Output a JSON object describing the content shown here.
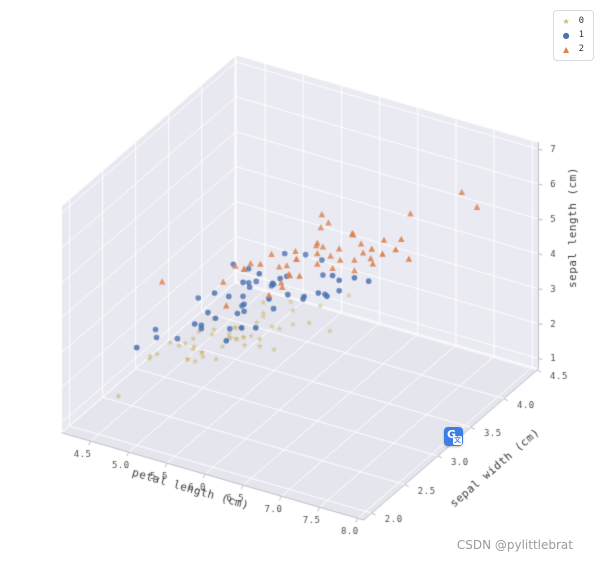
{
  "page": {
    "background": "#ffffff"
  },
  "watermark": {
    "text": "CSDN @pylittlebrat"
  },
  "overlay_icon": {
    "g": "G",
    "zh": "文"
  },
  "legend": {
    "items": [
      {
        "label": "0",
        "marker": "star",
        "color": "#ccb974"
      },
      {
        "label": "1",
        "marker": "circle",
        "color": "#4c72b0"
      },
      {
        "label": "2",
        "marker": "triangle",
        "color": "#dd8452"
      }
    ]
  },
  "chart_data": {
    "type": "scatter",
    "projection": "3d",
    "title": "",
    "view": {
      "azim": -60,
      "elev": 30,
      "box_aspect": [
        4,
        4,
        3
      ]
    },
    "axes": {
      "x": {
        "label": "petal length (cm)",
        "lim": [
          4.12,
          8.08
        ],
        "ticks": [
          4.5,
          5.0,
          5.5,
          6.0,
          6.5,
          7.0,
          7.5,
          8.0
        ],
        "tick_labels": [
          "4.5",
          "5.0",
          "5.5",
          "6.0",
          "6.5",
          "7.0",
          "7.5",
          "8.0"
        ]
      },
      "y": {
        "label": "sepal width (cm)",
        "lim": [
          1.88,
          4.52
        ],
        "ticks": [
          2.0,
          2.5,
          3.0,
          3.5,
          4.0,
          4.5
        ],
        "tick_labels": [
          "2.0",
          "2.5",
          "3.0",
          "3.5",
          "4.0",
          "4.5"
        ]
      },
      "z": {
        "label": "sepal length (cm)",
        "lim": [
          0.7,
          7.2
        ],
        "ticks": [
          1,
          2,
          3,
          4,
          5,
          6,
          7
        ],
        "tick_labels": [
          "1",
          "2",
          "3",
          "4",
          "5",
          "6",
          "7"
        ]
      }
    },
    "style": {
      "pane_left": "#e8e8f0",
      "pane_back": "#eaeaf2",
      "pane_floor": "#e5e5ee",
      "grid_color": "#ffffff",
      "axisline_color": "#b9b9c4",
      "tick_color": "#4a4a4a",
      "label_color": "#3a3a3a"
    },
    "series": [
      {
        "name": "0",
        "marker": "star",
        "color": "#ccb974",
        "points": [
          [
            5.1,
            3.5,
            1.4
          ],
          [
            4.9,
            3.0,
            1.4
          ],
          [
            4.7,
            3.2,
            1.3
          ],
          [
            4.6,
            3.1,
            1.5
          ],
          [
            5.0,
            3.6,
            1.4
          ],
          [
            5.4,
            3.9,
            1.7
          ],
          [
            4.6,
            3.4,
            1.4
          ],
          [
            5.0,
            3.4,
            1.5
          ],
          [
            4.4,
            2.9,
            1.4
          ],
          [
            4.9,
            3.1,
            1.5
          ],
          [
            5.4,
            3.7,
            1.5
          ],
          [
            4.8,
            3.4,
            1.6
          ],
          [
            4.8,
            3.0,
            1.4
          ],
          [
            4.3,
            3.0,
            1.1
          ],
          [
            5.8,
            4.0,
            1.2
          ],
          [
            5.7,
            4.4,
            1.5
          ],
          [
            5.4,
            3.9,
            1.3
          ],
          [
            5.1,
            3.5,
            1.4
          ],
          [
            5.7,
            3.8,
            1.7
          ],
          [
            5.1,
            3.8,
            1.5
          ],
          [
            5.4,
            3.4,
            1.7
          ],
          [
            5.1,
            3.7,
            1.5
          ],
          [
            4.6,
            3.6,
            1.0
          ],
          [
            5.1,
            3.3,
            1.7
          ],
          [
            4.8,
            3.4,
            1.9
          ],
          [
            5.0,
            3.0,
            1.6
          ],
          [
            5.0,
            3.4,
            1.6
          ],
          [
            5.2,
            3.5,
            1.5
          ],
          [
            5.2,
            3.4,
            1.4
          ],
          [
            4.7,
            3.2,
            1.6
          ],
          [
            4.8,
            3.1,
            1.6
          ],
          [
            5.4,
            3.4,
            1.5
          ],
          [
            5.2,
            4.1,
            1.5
          ],
          [
            5.5,
            4.2,
            1.4
          ],
          [
            4.9,
            3.1,
            1.5
          ],
          [
            5.0,
            3.2,
            1.2
          ],
          [
            5.5,
            3.5,
            1.3
          ],
          [
            4.9,
            3.6,
            1.4
          ],
          [
            4.4,
            3.0,
            1.3
          ],
          [
            5.1,
            3.4,
            1.5
          ],
          [
            5.0,
            3.5,
            1.3
          ],
          [
            4.5,
            2.3,
            1.3
          ],
          [
            4.4,
            3.2,
            1.3
          ],
          [
            5.0,
            3.5,
            1.6
          ],
          [
            5.1,
            3.8,
            1.9
          ],
          [
            4.8,
            3.0,
            1.4
          ],
          [
            5.1,
            3.8,
            1.6
          ],
          [
            4.6,
            3.2,
            1.4
          ],
          [
            5.3,
            3.7,
            1.5
          ],
          [
            5.0,
            3.3,
            1.4
          ]
        ]
      },
      {
        "name": "1",
        "marker": "circle",
        "color": "#4c72b0",
        "points": [
          [
            7.0,
            3.2,
            4.7
          ],
          [
            6.4,
            3.2,
            4.5
          ],
          [
            6.9,
            3.1,
            4.9
          ],
          [
            5.5,
            2.3,
            4.0
          ],
          [
            6.5,
            2.8,
            4.6
          ],
          [
            5.7,
            2.8,
            4.5
          ],
          [
            6.3,
            3.3,
            4.7
          ],
          [
            4.9,
            2.4,
            3.3
          ],
          [
            6.6,
            2.9,
            4.6
          ],
          [
            5.2,
            2.7,
            3.9
          ],
          [
            5.0,
            2.0,
            3.5
          ],
          [
            5.9,
            3.0,
            4.2
          ],
          [
            6.0,
            2.2,
            4.0
          ],
          [
            6.1,
            2.9,
            4.7
          ],
          [
            5.6,
            2.9,
            3.6
          ],
          [
            6.7,
            3.1,
            4.4
          ],
          [
            5.6,
            3.0,
            4.5
          ],
          [
            5.8,
            2.7,
            4.1
          ],
          [
            6.2,
            2.2,
            4.5
          ],
          [
            5.6,
            2.5,
            3.9
          ],
          [
            5.9,
            3.2,
            4.8
          ],
          [
            6.1,
            2.8,
            4.0
          ],
          [
            6.3,
            2.5,
            4.9
          ],
          [
            6.1,
            2.8,
            4.7
          ],
          [
            6.4,
            2.9,
            4.3
          ],
          [
            6.6,
            3.0,
            4.4
          ],
          [
            6.8,
            2.8,
            4.8
          ],
          [
            6.7,
            3.0,
            5.0
          ],
          [
            6.0,
            2.9,
            4.5
          ],
          [
            5.7,
            2.6,
            3.5
          ],
          [
            5.5,
            2.4,
            3.8
          ],
          [
            5.5,
            2.4,
            3.7
          ],
          [
            5.8,
            2.7,
            3.9
          ],
          [
            6.0,
            2.7,
            5.1
          ],
          [
            5.4,
            3.0,
            4.5
          ],
          [
            6.0,
            3.4,
            4.5
          ],
          [
            6.7,
            3.1,
            4.7
          ],
          [
            6.3,
            2.3,
            4.4
          ],
          [
            5.6,
            3.0,
            4.1
          ],
          [
            5.5,
            2.5,
            4.0
          ],
          [
            5.5,
            2.6,
            4.4
          ],
          [
            6.1,
            3.0,
            4.6
          ],
          [
            5.8,
            2.6,
            4.0
          ],
          [
            5.0,
            2.3,
            3.3
          ],
          [
            5.6,
            2.7,
            4.2
          ],
          [
            5.7,
            3.0,
            4.2
          ],
          [
            5.7,
            2.9,
            4.2
          ],
          [
            6.2,
            2.9,
            4.3
          ],
          [
            5.1,
            2.5,
            3.0
          ],
          [
            5.7,
            2.8,
            4.1
          ]
        ]
      },
      {
        "name": "2",
        "marker": "triangle",
        "color": "#dd8452",
        "points": [
          [
            6.3,
            3.3,
            6.0
          ],
          [
            5.8,
            2.7,
            5.1
          ],
          [
            7.1,
            3.0,
            5.9
          ],
          [
            6.3,
            2.9,
            5.6
          ],
          [
            6.5,
            3.0,
            5.8
          ],
          [
            7.6,
            3.0,
            6.6
          ],
          [
            4.9,
            2.5,
            4.5
          ],
          [
            7.3,
            2.9,
            6.3
          ],
          [
            6.7,
            2.5,
            5.8
          ],
          [
            7.2,
            3.6,
            6.1
          ],
          [
            6.5,
            3.2,
            5.1
          ],
          [
            6.4,
            2.7,
            5.3
          ],
          [
            6.8,
            3.0,
            5.5
          ],
          [
            5.7,
            2.5,
            5.0
          ],
          [
            5.8,
            2.8,
            5.1
          ],
          [
            6.4,
            3.2,
            5.3
          ],
          [
            6.5,
            3.0,
            5.5
          ],
          [
            7.7,
            3.8,
            6.7
          ],
          [
            7.7,
            2.6,
            6.9
          ],
          [
            6.0,
            2.2,
            5.0
          ],
          [
            6.9,
            3.2,
            5.7
          ],
          [
            5.6,
            2.8,
            4.9
          ],
          [
            7.7,
            2.8,
            6.7
          ],
          [
            6.3,
            2.7,
            4.9
          ],
          [
            6.7,
            3.3,
            5.7
          ],
          [
            7.2,
            3.2,
            6.0
          ],
          [
            6.2,
            2.8,
            4.8
          ],
          [
            6.1,
            3.0,
            4.9
          ],
          [
            6.4,
            2.8,
            5.6
          ],
          [
            7.2,
            3.0,
            5.8
          ],
          [
            7.4,
            2.8,
            6.1
          ],
          [
            7.9,
            3.8,
            6.4
          ],
          [
            6.4,
            2.8,
            5.6
          ],
          [
            6.3,
            2.8,
            5.1
          ],
          [
            6.1,
            2.6,
            5.6
          ],
          [
            7.7,
            3.0,
            6.1
          ],
          [
            6.3,
            3.4,
            5.6
          ],
          [
            6.4,
            3.1,
            5.5
          ],
          [
            6.0,
            3.0,
            4.8
          ],
          [
            6.9,
            3.1,
            5.4
          ],
          [
            6.7,
            3.1,
            5.6
          ],
          [
            6.9,
            3.1,
            5.1
          ],
          [
            5.8,
            2.7,
            5.1
          ],
          [
            6.8,
            3.2,
            5.9
          ],
          [
            6.7,
            3.3,
            5.7
          ],
          [
            6.7,
            3.0,
            5.2
          ],
          [
            6.3,
            2.5,
            5.0
          ],
          [
            6.5,
            3.0,
            5.2
          ],
          [
            6.2,
            3.4,
            5.4
          ],
          [
            5.9,
            3.0,
            5.1
          ]
        ]
      }
    ]
  }
}
